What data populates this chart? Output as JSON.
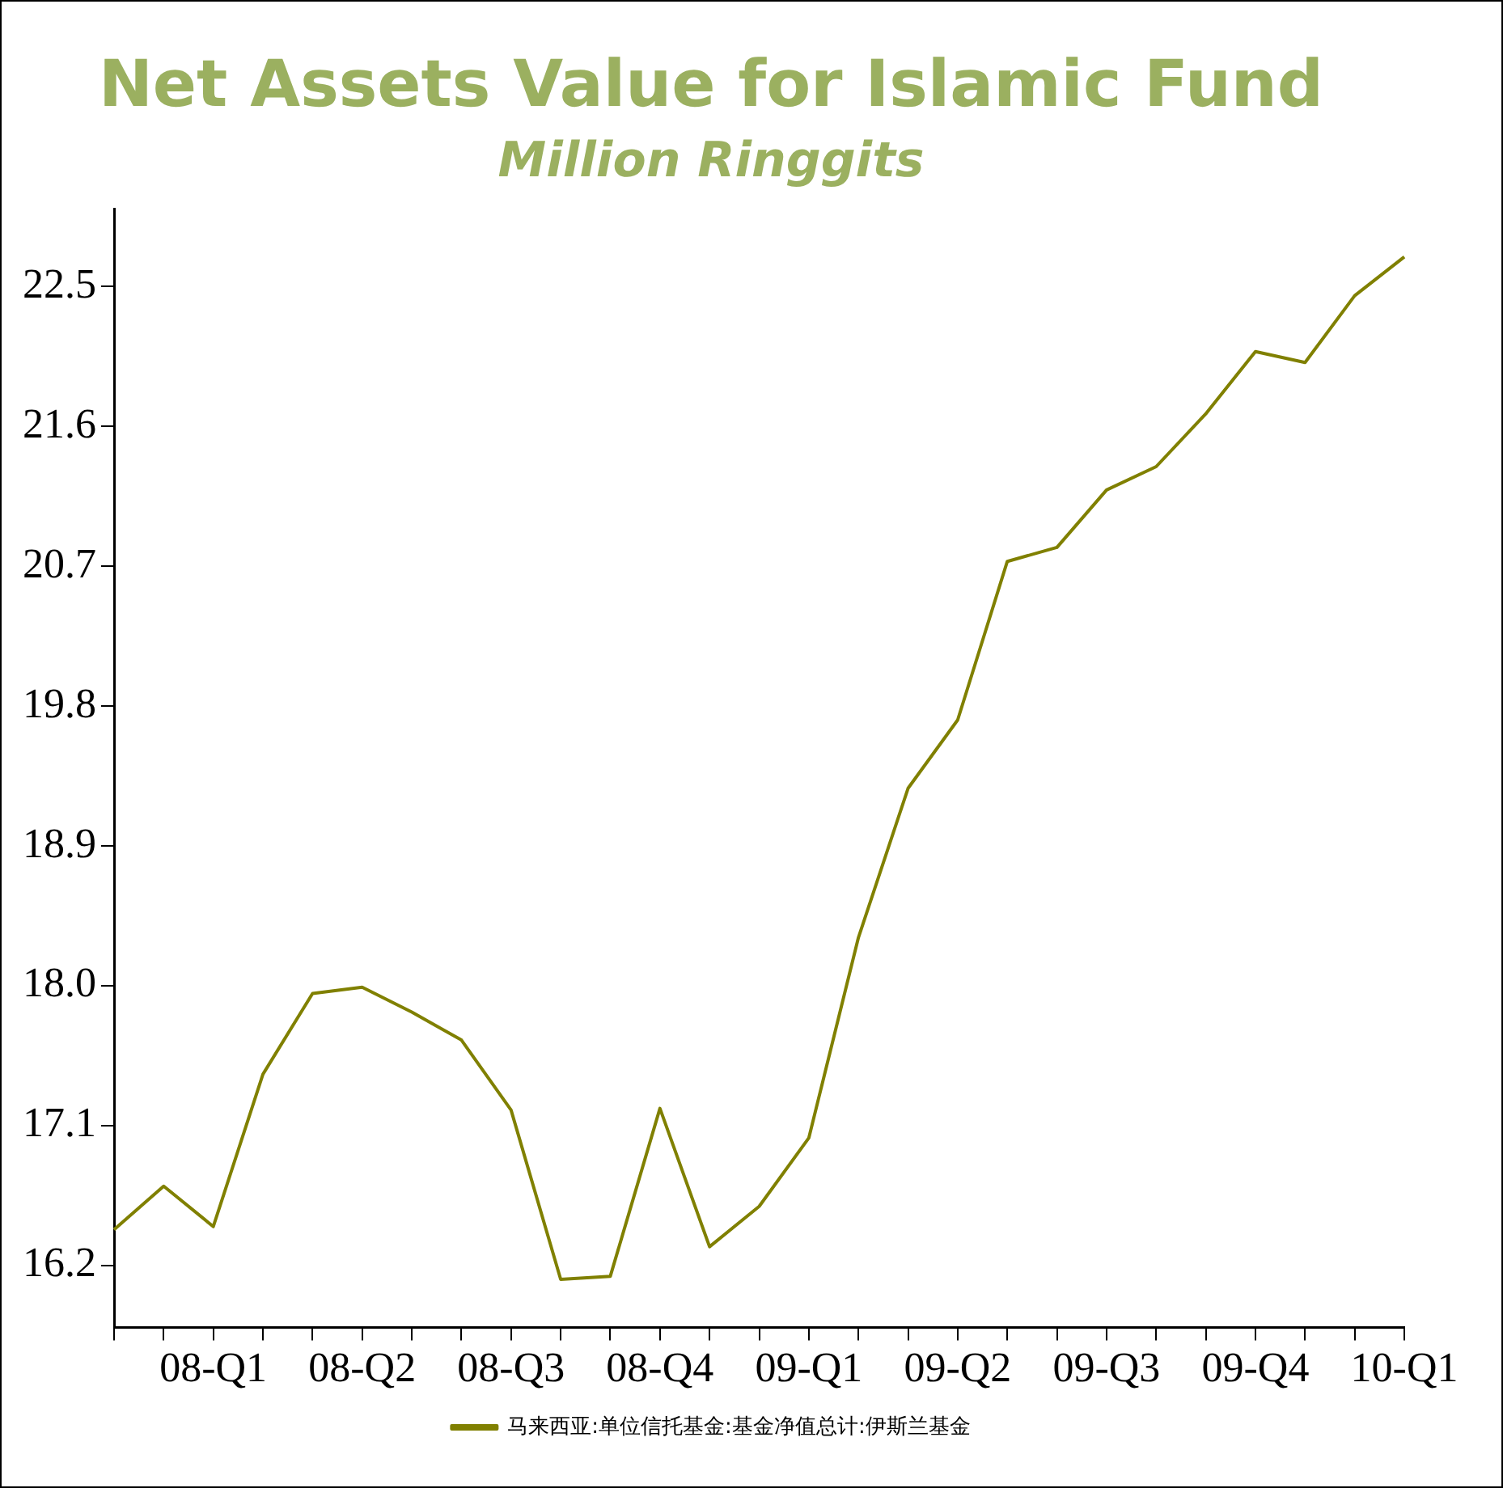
{
  "chart_data": {
    "type": "line",
    "title": "Net Assets Value for Islamic Fund",
    "subtitle": "Million Ringgits",
    "categories": [
      null,
      null,
      "08-Q1",
      null,
      null,
      "08-Q2",
      null,
      null,
      "08-Q3",
      null,
      null,
      "08-Q4",
      null,
      null,
      "09-Q1",
      null,
      null,
      "09-Q2",
      null,
      null,
      "09-Q3",
      null,
      null,
      "09-Q4",
      null,
      null,
      "10-Q1"
    ],
    "series": [
      {
        "name": "马来西亚:单位信托基金:基金净值总计:伊斯兰基金",
        "color": "#808000",
        "values": [
          16.43,
          16.71,
          16.45,
          17.43,
          17.95,
          17.99,
          17.83,
          17.65,
          17.2,
          16.11,
          16.13,
          17.21,
          16.32,
          16.58,
          17.02,
          18.31,
          19.27,
          19.71,
          20.73,
          20.82,
          21.19,
          21.34,
          21.68,
          22.08,
          22.01,
          22.44,
          22.69
        ]
      }
    ],
    "ylim": [
      15.8,
      23.0
    ],
    "yticks": [
      16.2,
      17.1,
      {
        "value": 18,
        "label": "18.0"
      },
      18.9,
      19.8,
      20.7,
      21.6,
      22.5
    ],
    "grid": false,
    "legend": "bottom",
    "marker": "none",
    "line_style": "solid"
  }
}
